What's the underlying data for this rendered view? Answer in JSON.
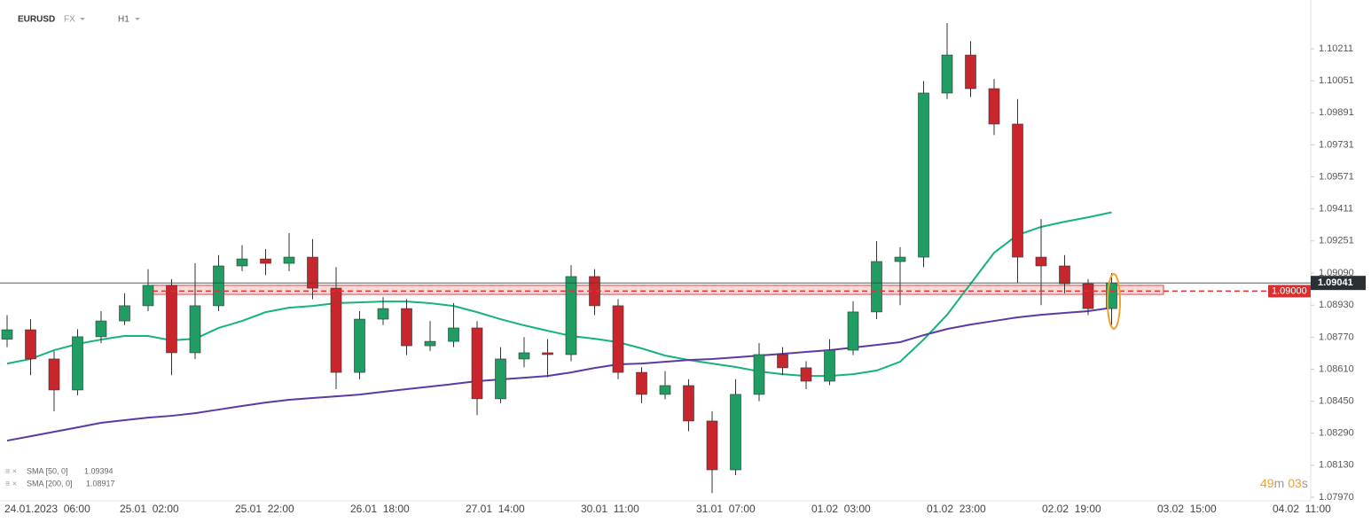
{
  "header": {
    "symbol": "EURUSD",
    "market": "FX",
    "interval": "H1"
  },
  "timer": [
    "49",
    "m",
    "03",
    "s"
  ],
  "chart_data": {
    "type": "candlestick",
    "up_color": "#1f9d62",
    "down_color": "#c8252c",
    "ylim": [
      1.07952,
      1.10455
    ],
    "yticks": [
      1.10211,
      1.10051,
      1.09891,
      1.09731,
      1.09571,
      1.09411,
      1.09251,
      {
        "value": 1.0909,
        "label": "1.09090"
      },
      {
        "value": 1.0893,
        "label": "1.08930"
      },
      {
        "value": 1.0877,
        "label": "1.08770"
      },
      {
        "value": 1.0861,
        "label": "1.08610"
      },
      {
        "value": 1.0845,
        "label": "1.08450"
      },
      {
        "value": 1.0829,
        "label": "1.08290"
      },
      {
        "value": 1.0813,
        "label": "1.08130"
      },
      {
        "value": 1.0797,
        "label": "1.07970"
      }
    ],
    "x_labels": [
      "24.01.2023  06:00",
      "25.01  02:00",
      "25.01  22:00",
      "26.01  18:00",
      "27.01  14:00",
      "30.01  11:00",
      "31.01  07:00",
      "01.02  03:00",
      "01.02  23:00",
      "02.02  19:00",
      "03.02  15:00",
      "04.02  11:00"
    ],
    "open": [
      1.0876,
      1.08807,
      1.08661,
      1.08506,
      1.08772,
      1.08851,
      1.08927,
      1.09029,
      1.08692,
      1.08927,
      1.09126,
      1.09161,
      1.09139,
      1.0917,
      1.09015,
      1.08594,
      1.0886,
      1.08913,
      1.08727,
      1.08749,
      1.08816,
      1.08462,
      1.08661,
      1.08692,
      1.08683,
      1.09073,
      1.08927,
      1.08594,
      1.08484,
      1.08528,
      1.08351,
      1.08107,
      1.08484,
      1.08683,
      1.08617,
      1.0855,
      1.08705,
      1.08896,
      1.09148,
      1.0917,
      1.0999,
      1.1018,
      1.10012,
      1.09835,
      1.0917,
      1.09126,
      1.09037,
      1.08913
    ],
    "high": [
      1.0888,
      1.0886,
      1.087,
      1.0881,
      1.089,
      1.0899,
      1.0911,
      1.0906,
      1.0914,
      1.0918,
      1.0923,
      1.0921,
      1.0929,
      1.0926,
      1.0912,
      1.089,
      1.0897,
      1.0896,
      1.0885,
      1.0894,
      1.0885,
      1.0872,
      1.0877,
      1.0876,
      1.0913,
      1.0911,
      1.0896,
      1.0862,
      1.086,
      1.0856,
      1.084,
      1.0856,
      1.0874,
      1.0872,
      1.0865,
      1.0876,
      1.0895,
      1.0925,
      1.0922,
      1.1005,
      1.1034,
      1.1025,
      1.1006,
      1.0996,
      1.0936,
      1.0918,
      1.0906,
      1.0909
    ],
    "low": [
      1.0872,
      1.0858,
      1.084,
      1.0848,
      1.0874,
      1.0883,
      1.089,
      1.0858,
      1.0866,
      1.089,
      1.091,
      1.0908,
      1.091,
      1.0896,
      1.0851,
      1.0856,
      1.0883,
      1.0868,
      1.087,
      1.0872,
      1.0838,
      1.0844,
      1.0862,
      1.0857,
      1.0865,
      1.0888,
      1.0856,
      1.0844,
      1.0846,
      1.083,
      1.0799,
      1.0808,
      1.0845,
      1.0858,
      1.0851,
      1.0853,
      1.0868,
      1.0886,
      1.0893,
      1.0912,
      1.0996,
      1.0997,
      1.0978,
      1.0904,
      1.0893,
      1.0899,
      1.0888,
      1.0883
    ],
    "close": [
      1.08807,
      1.08661,
      1.08506,
      1.08772,
      1.08851,
      1.08927,
      1.09029,
      1.08692,
      1.08927,
      1.09126,
      1.09161,
      1.09139,
      1.0917,
      1.09015,
      1.08594,
      1.0886,
      1.08913,
      1.08727,
      1.08749,
      1.08816,
      1.08462,
      1.08661,
      1.08692,
      1.08683,
      1.09073,
      1.08927,
      1.08594,
      1.08484,
      1.08528,
      1.08351,
      1.08107,
      1.08484,
      1.08683,
      1.08617,
      1.0855,
      1.08705,
      1.08896,
      1.09148,
      1.0917,
      1.0999,
      1.1018,
      1.10012,
      1.09835,
      1.0917,
      1.09126,
      1.09037,
      1.08913,
      1.09041
    ],
    "lines": [
      {
        "name": "SMA [50, 0]",
        "color": "#14b47a",
        "values": [
          1.08638,
          1.08661,
          1.08705,
          1.08736,
          1.08758,
          1.08776,
          1.08776,
          1.08754,
          1.08762,
          1.08816,
          1.08851,
          1.08895,
          1.08917,
          1.08926,
          1.0894,
          1.08944,
          1.08948,
          1.08948,
          1.0894,
          1.08926,
          1.08895,
          1.0886,
          1.08829,
          1.08802,
          1.08776,
          1.08762,
          1.08745,
          1.08714,
          1.08678,
          1.08656,
          1.08638,
          1.08621,
          1.08599,
          1.08585,
          1.08576,
          1.08576,
          1.08585,
          1.08603,
          1.08647,
          1.08758,
          1.08882,
          1.09037,
          1.09192,
          1.09281,
          1.09321,
          1.09347,
          1.09369,
          1.09394
        ]
      },
      {
        "name": "SMA [200, 0]",
        "color": "#5b3aa6",
        "values": [
          1.08253,
          1.08275,
          1.08297,
          1.08319,
          1.08342,
          1.08355,
          1.08368,
          1.08377,
          1.0839,
          1.08408,
          1.08426,
          1.08443,
          1.08457,
          1.08466,
          1.08474,
          1.08483,
          1.08497,
          1.0851,
          1.08523,
          1.08536,
          1.0855,
          1.08559,
          1.08567,
          1.08576,
          1.08594,
          1.08616,
          1.08634,
          1.08638,
          1.08647,
          1.08656,
          1.08661,
          1.08669,
          1.08678,
          1.08687,
          1.08696,
          1.08705,
          1.08718,
          1.08731,
          1.08745,
          1.0878,
          1.08811,
          1.08833,
          1.08851,
          1.08869,
          1.08882,
          1.08891,
          1.089,
          1.08917
        ]
      }
    ],
    "zone": [
      1.08984,
      1.09029
    ],
    "level": {
      "value": 1.09,
      "value_label": "1.09000"
    },
    "last_price": 1.09041
  }
}
